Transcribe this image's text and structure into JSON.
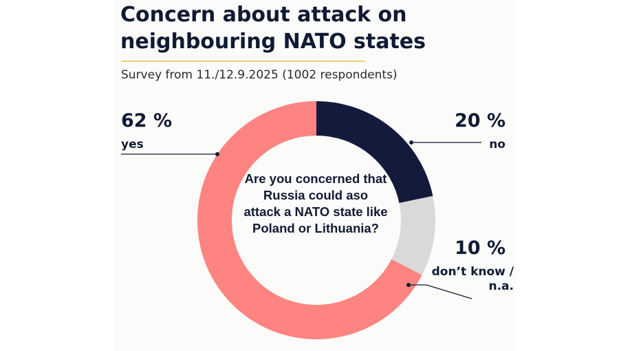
{
  "chart_data": {
    "type": "pie",
    "title": "Concern about attack on neighbouring NATO states",
    "subtitle": "Survey from 11./12.9.2025 (1002 respondents)",
    "center_text": "Are you concerned that Russia could aso attack a NATO state like Poland or Lithuania?",
    "unit": "%",
    "slices": [
      {
        "label": "no",
        "value": 20,
        "value_text": "20 %",
        "color": "#141a3b"
      },
      {
        "label": "don’t know / n.a.",
        "value": 10,
        "value_text": "10 %",
        "color": "#d9d9d9"
      },
      {
        "label": "yes",
        "value": 62,
        "value_text": "62 %",
        "color": "#fd8480"
      }
    ]
  }
}
